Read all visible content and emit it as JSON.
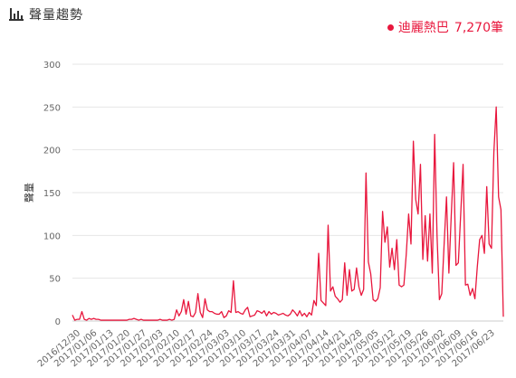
{
  "header": {
    "title": "聲量趨勢",
    "icon": "bar-chart-icon"
  },
  "legend": {
    "label": "迪麗熱巴",
    "count": "7,270筆",
    "color": "#e8173d"
  },
  "chart_data": {
    "type": "line",
    "ylabel": "聲量",
    "ylim": [
      0,
      300
    ],
    "yticks": [
      0,
      50,
      100,
      150,
      200,
      250,
      300
    ],
    "grid": true,
    "legend_position": "top-right",
    "series": [
      {
        "name": "迪麗熱巴",
        "color": "#e8173d",
        "values": [
          7,
          1,
          2,
          2,
          11,
          2,
          1,
          3,
          2,
          3,
          2,
          2,
          1,
          1,
          1,
          1,
          1,
          1,
          1,
          1,
          1,
          1,
          1,
          1,
          2,
          2,
          3,
          2,
          1,
          2,
          1,
          1,
          1,
          1,
          1,
          1,
          1,
          2,
          1,
          1,
          1,
          2,
          1,
          2,
          13,
          6,
          11,
          25,
          8,
          23,
          6,
          5,
          10,
          32,
          10,
          4,
          26,
          13,
          11,
          11,
          9,
          8,
          8,
          11,
          4,
          6,
          12,
          10,
          47,
          10,
          11,
          9,
          8,
          13,
          16,
          5,
          6,
          7,
          12,
          11,
          9,
          12,
          6,
          11,
          8,
          10,
          9,
          7,
          8,
          9,
          7,
          6,
          8,
          13,
          10,
          6,
          12,
          6,
          9,
          5,
          10,
          7,
          24,
          18,
          79,
          24,
          21,
          18,
          112,
          35,
          40,
          29,
          26,
          22,
          25,
          68,
          30,
          60,
          35,
          37,
          62,
          40,
          30,
          37,
          173,
          69,
          55,
          25,
          23,
          26,
          39,
          128,
          92,
          110,
          63,
          85,
          60,
          95,
          42,
          40,
          42,
          78,
          125,
          90,
          210,
          142,
          125,
          183,
          72,
          123,
          70,
          125,
          56,
          218,
          100,
          25,
          32,
          90,
          145,
          56,
          123,
          185,
          65,
          68,
          125,
          183,
          42,
          43,
          30,
          38,
          26,
          63,
          95,
          100,
          79,
          157,
          90,
          85,
          197,
          250,
          145,
          130,
          5
        ]
      }
    ],
    "x_tick_labels": [
      "2016/12/30",
      "2017/01/06",
      "2017/01/13",
      "2017/01/20",
      "2017/01/27",
      "2017/02/03",
      "2017/02/10",
      "2017/02/17",
      "2017/02/24",
      "2017/03/03",
      "2017/03/10",
      "2017/03/17",
      "2017/03/24",
      "2017/03/31",
      "2017/04/07",
      "2017/04/14",
      "2017/04/21",
      "2017/04/28",
      "2017/05/05",
      "2017/05/12",
      "2017/05/19",
      "2017/05/26",
      "2017/06/02",
      "2017/06/09",
      "2017/06/16",
      "2017/06/23"
    ]
  }
}
